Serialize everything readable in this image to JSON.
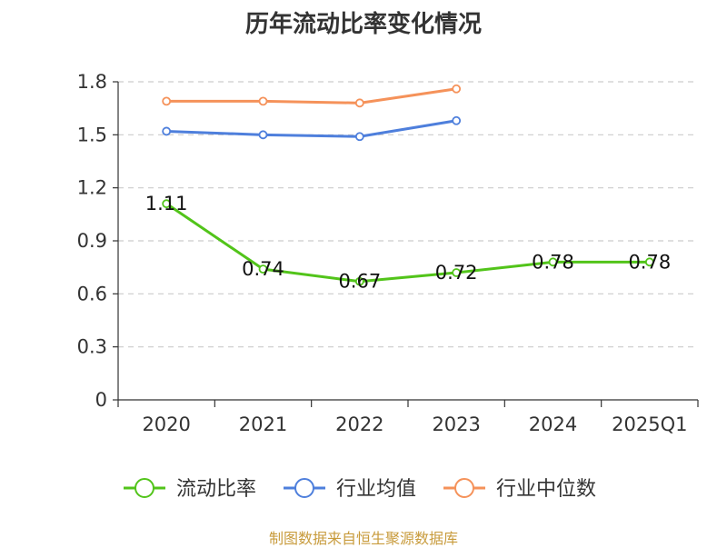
{
  "chart_data": {
    "type": "line",
    "title": "历年流动比率变化情况",
    "categories": [
      "2020",
      "2021",
      "2022",
      "2023",
      "2024",
      "2025Q1"
    ],
    "ylim": [
      0,
      1.8
    ],
    "yticks": [
      "0",
      "0.3",
      "0.6",
      "0.9",
      "1.2",
      "1.5",
      "1.8"
    ],
    "grid": true,
    "legend_position": "bottom",
    "series": [
      {
        "name": "流动比率",
        "color": "#52c41a",
        "values": [
          1.11,
          0.74,
          0.67,
          0.72,
          0.78,
          0.78
        ],
        "labels": [
          "1.11",
          "0.74",
          "0.67",
          "0.72",
          "0.78",
          "0.78"
        ]
      },
      {
        "name": "行业均值",
        "color": "#4e7fdc",
        "values": [
          1.52,
          1.5,
          1.49,
          1.58,
          null,
          null
        ]
      },
      {
        "name": "行业中位数",
        "color": "#f5925a",
        "values": [
          1.69,
          1.69,
          1.68,
          1.76,
          null,
          null
        ]
      }
    ]
  },
  "footer": {
    "source": "制图数据来自恒生聚源数据库"
  }
}
